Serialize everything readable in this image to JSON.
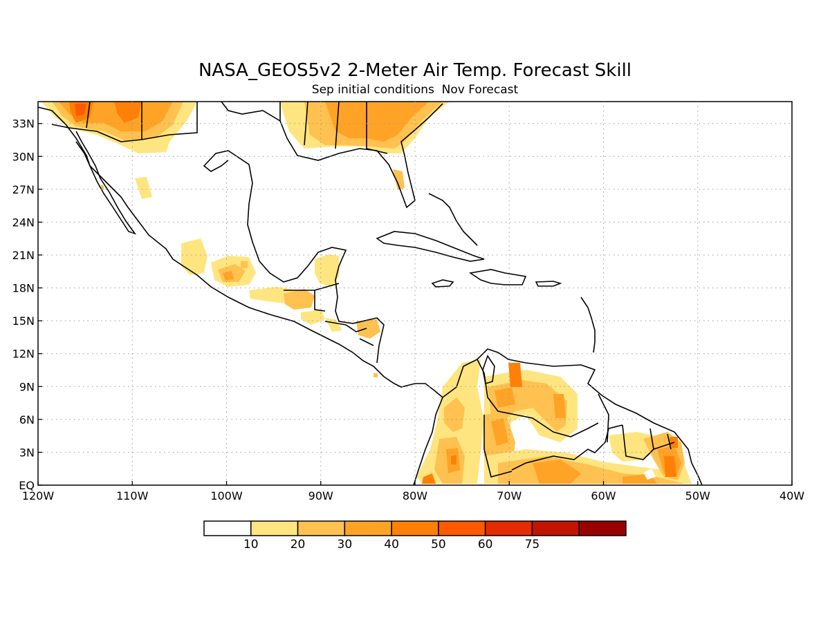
{
  "title": "NASA_GEOS5v2 2-Meter Air Temp. Forecast Skill",
  "subtitle": "Sep initial conditions  Nov Forecast",
  "lat_labels": [
    "EQ",
    "3N",
    "6N",
    "9N",
    "12N",
    "15N",
    "18N",
    "21N",
    "24N",
    "27N",
    "30N",
    "33N"
  ],
  "lon_labels": [
    "120W",
    "110W",
    "100W",
    "90W",
    "80W",
    "70W",
    "60W",
    "50W",
    "40W"
  ],
  "colorbar": {
    "labels": [
      "10",
      "20",
      "30",
      "40",
      "50",
      "60",
      "75"
    ],
    "colors": [
      "#ffffff",
      "#ffe57f",
      "#ffc14f",
      "#ffa326",
      "#ff8007",
      "#ff5a00",
      "#e52b00",
      "#c21500",
      "#990000"
    ]
  },
  "colors": {
    "coast": "#000000",
    "grid": "#999999"
  }
}
